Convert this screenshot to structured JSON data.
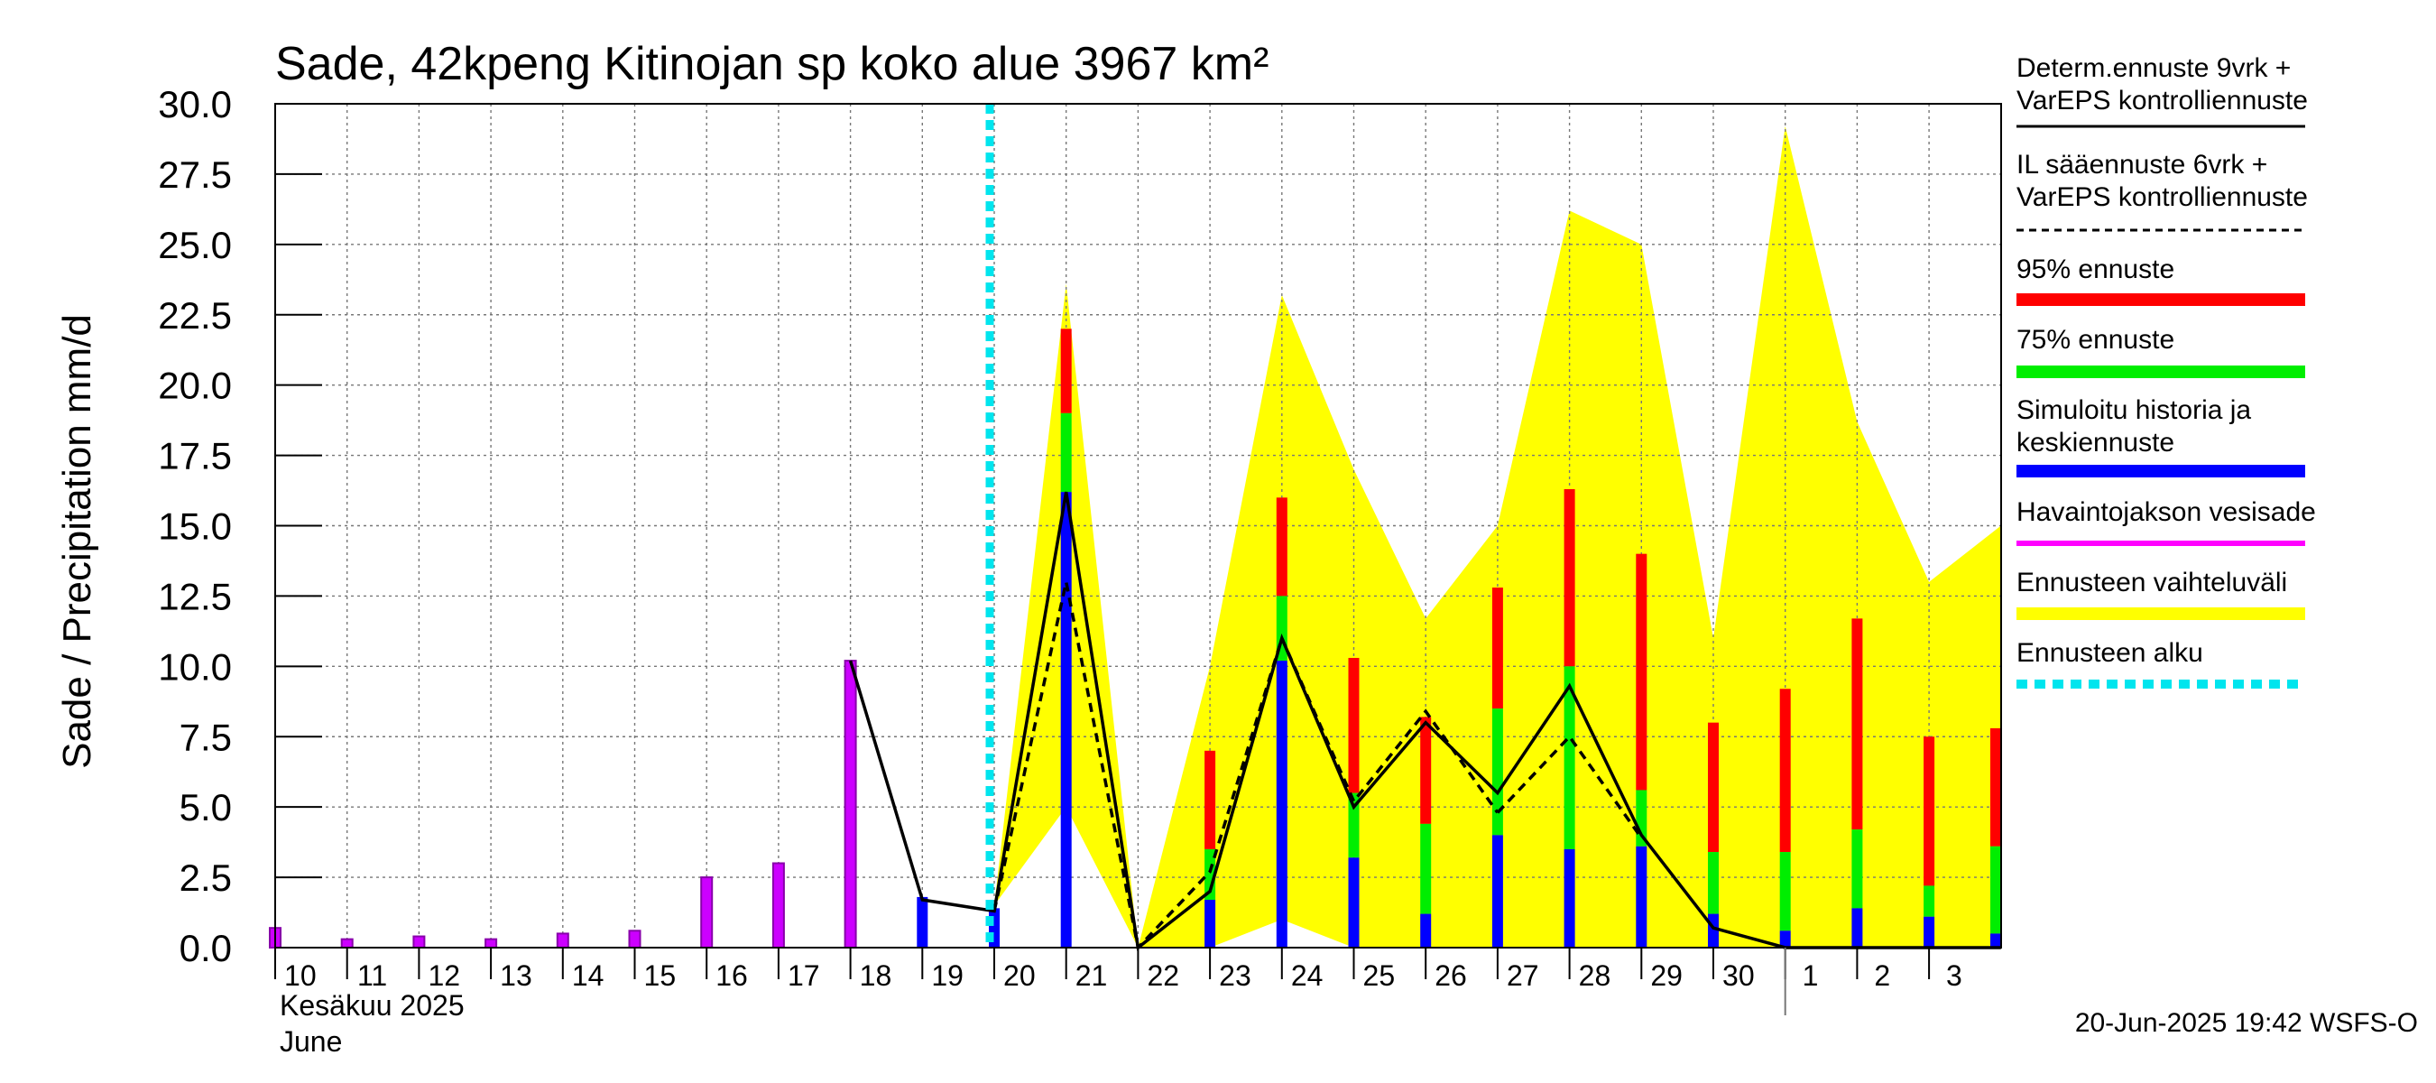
{
  "chart_data": {
    "type": "bar",
    "title": "Sade, 42kpeng Kitinojan sp koko alue 3967 km²",
    "ylabel": "Sade / Precipitation   mm/d",
    "ylim": [
      0,
      30
    ],
    "yticks": [
      "0.0",
      "2.5",
      "5.0",
      "7.5",
      "10.0",
      "12.5",
      "15.0",
      "17.5",
      "20.0",
      "22.5",
      "25.0",
      "27.5",
      "30.0"
    ],
    "month_label_fi": "Kesäkuu  2025",
    "month_label_en": "June",
    "days": [
      "10",
      "11",
      "12",
      "13",
      "14",
      "15",
      "16",
      "17",
      "18",
      "19",
      "20",
      "21",
      "22",
      "23",
      "24",
      "25",
      "26",
      "27",
      "28",
      "29",
      "30",
      "1",
      "2",
      "3"
    ],
    "forecast_start_day": "20",
    "observed_precip": [
      0.7,
      0.3,
      0.4,
      0.3,
      0.5,
      0.6,
      2.5,
      3.0,
      10.2
    ],
    "simulated_history": [
      1.8,
      1.4
    ],
    "forecast_days": [
      "21",
      "22",
      "23",
      "24",
      "25",
      "26",
      "27",
      "28",
      "29",
      "30",
      "1",
      "2",
      "3",
      "4"
    ],
    "forecast_mean": [
      16.2,
      0.0,
      1.7,
      10.2,
      3.2,
      1.2,
      4.0,
      3.5,
      3.6,
      1.2,
      0.6,
      1.4,
      1.1,
      0.5
    ],
    "forecast_75": [
      19.0,
      0.0,
      3.5,
      12.5,
      5.5,
      4.4,
      8.5,
      10.0,
      5.6,
      3.4,
      3.4,
      4.2,
      2.2,
      3.6
    ],
    "forecast_95": [
      22.0,
      0.0,
      7.0,
      16.0,
      10.3,
      8.2,
      12.8,
      16.3,
      14.0,
      8.0,
      9.2,
      11.7,
      7.5,
      7.8
    ],
    "range_low": [
      1.5,
      5.0,
      0.0,
      0.0,
      1.0,
      0.0,
      0.0,
      0.0,
      0.0,
      0.0,
      0.0,
      0.0,
      0.0,
      0.0,
      0.0
    ],
    "range_high": [
      1.5,
      23.6,
      0.0,
      10.0,
      23.2,
      17.0,
      11.7,
      15.0,
      26.2,
      25.0,
      11.0,
      29.2,
      18.7,
      13.0,
      15.0
    ],
    "determ_line_x": [
      "18",
      "19",
      "20",
      "21",
      "22",
      "23",
      "24",
      "25",
      "26",
      "27",
      "28",
      "29",
      "30",
      "1",
      "2",
      "3",
      "4"
    ],
    "determ_line": [
      10.2,
      1.7,
      1.3,
      16.2,
      0.0,
      2.0,
      11.0,
      5.0,
      8.0,
      5.5,
      9.3,
      4.0,
      0.7,
      0.0,
      0.0,
      0.0,
      0.0
    ],
    "il_line_x": [
      "20",
      "21",
      "22",
      "23",
      "24",
      "25",
      "26",
      "27"
    ],
    "il_line": [
      1.3,
      13.0,
      0.0,
      2.7,
      11.0,
      5.2,
      8.4,
      4.8
    ],
    "il_line_x2": [
      "27",
      "28",
      "29"
    ],
    "il_line2": [
      4.8,
      7.5,
      3.9
    ],
    "legend": [
      {
        "label": "Determ.ennuste 9vrk +",
        "label2": "VarEPS kontrolliennuste",
        "color": "#000000",
        "style": "solid"
      },
      {
        "label": "IL sääennuste 6vrk  +",
        "label2": "  VarEPS kontrolliennuste",
        "color": "#000000",
        "style": "dashed"
      },
      {
        "label": "95% ennuste",
        "label2": "",
        "color": "#ff0000",
        "style": "bar"
      },
      {
        "label": "75% ennuste",
        "label2": "",
        "color": "#00ee00",
        "style": "bar"
      },
      {
        "label": "Simuloitu historia ja",
        "label2": "keskiennuste",
        "color": "#0000ff",
        "style": "bar"
      },
      {
        "label": "Havaintojakson vesisade",
        "label2": "",
        "color": "#ff00ff",
        "style": "thin"
      },
      {
        "label": "Ennusteen vaihteluväli",
        "label2": "",
        "color": "#ffff00",
        "style": "bar"
      },
      {
        "label": "Ennusteen alku",
        "label2": "",
        "color": "#00e5ee",
        "style": "dotted"
      }
    ],
    "colors": {
      "observed": "#cc00ff",
      "observed_edge": "#8800aa",
      "mean": "#0000ff",
      "p75": "#00ee00",
      "p95": "#ff0000",
      "range": "#ffff00",
      "forecast_start": "#00e5ee"
    }
  },
  "footer": "20-Jun-2025 19:42 WSFS-O"
}
